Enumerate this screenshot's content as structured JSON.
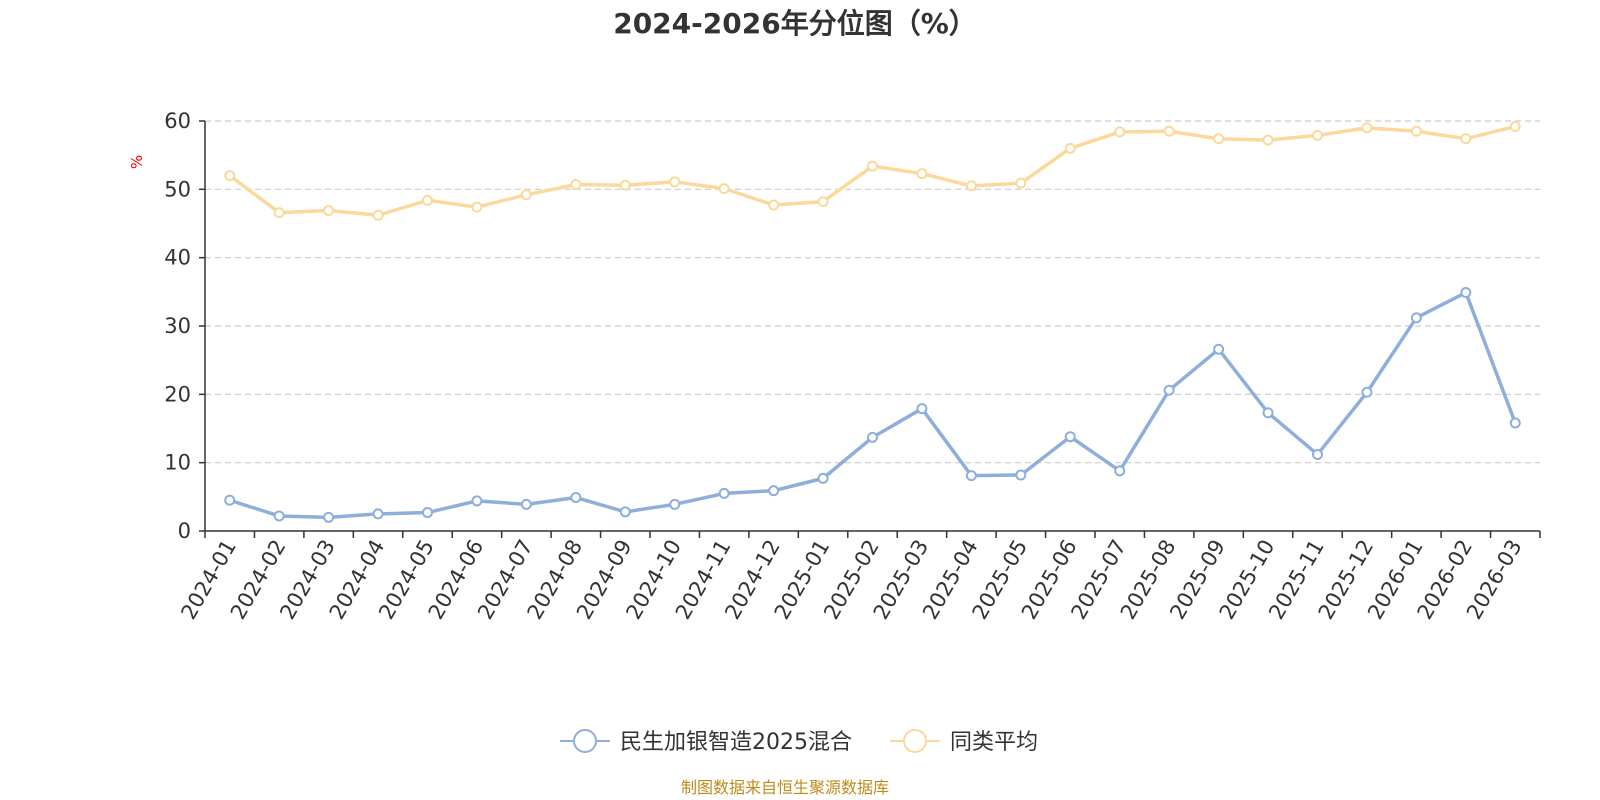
{
  "chart_data": {
    "type": "line",
    "title": "2024-2026年分位图（%）",
    "ylabel": "%",
    "xlabel": "",
    "ylim": [
      0,
      60
    ],
    "yticks": [
      0,
      10,
      20,
      30,
      40,
      50,
      60
    ],
    "grid": true,
    "legend_position": "bottom-center",
    "categories": [
      "2024-01",
      "2024-02",
      "2024-03",
      "2024-04",
      "2024-05",
      "2024-06",
      "2024-07",
      "2024-08",
      "2024-09",
      "2024-10",
      "2024-11",
      "2024-12",
      "2025-01",
      "2025-02",
      "2025-03",
      "2025-04",
      "2025-05",
      "2025-06",
      "2025-07",
      "2025-08",
      "2025-09",
      "2025-10",
      "2025-11",
      "2025-12",
      "2026-01",
      "2026-02",
      "2026-03"
    ],
    "series": [
      {
        "name": "民生加银智造2025混合",
        "color": "#8eaedb",
        "values": [
          4.5,
          2.2,
          2.0,
          2.5,
          2.7,
          4.4,
          3.9,
          4.9,
          2.8,
          3.9,
          5.5,
          5.9,
          7.7,
          13.7,
          17.9,
          8.1,
          8.2,
          13.8,
          8.8,
          20.6,
          26.6,
          17.3,
          11.2,
          20.3,
          31.2,
          34.9,
          15.8
        ]
      },
      {
        "name": "同类平均",
        "color": "#fbd99a",
        "values": [
          52.0,
          46.6,
          46.9,
          46.2,
          48.4,
          47.4,
          49.2,
          50.7,
          50.6,
          51.1,
          50.1,
          47.7,
          48.2,
          53.4,
          52.3,
          50.5,
          50.9,
          56.0,
          58.4,
          58.5,
          57.4,
          57.2,
          57.9,
          59.0,
          58.5,
          57.4,
          59.2
        ]
      }
    ],
    "source": "制图数据来自恒生聚源数据库"
  }
}
